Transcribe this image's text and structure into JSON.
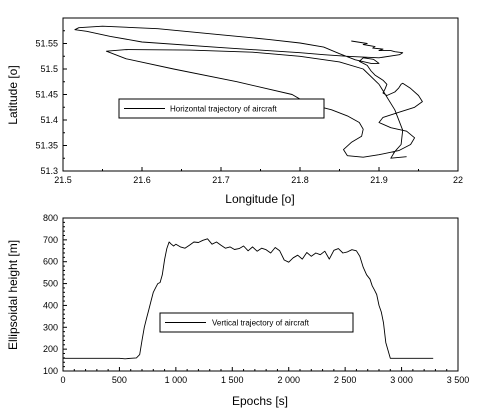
{
  "chart_data": [
    {
      "type": "line",
      "xlabel": "Longitude [o]",
      "ylabel": "Latitude [o]",
      "xlim": [
        21.5,
        22.0
      ],
      "ylim": [
        51.3,
        51.6
      ],
      "xticks": [
        "21.5",
        "21.6",
        "21.7",
        "21.8",
        "21.9",
        "22"
      ],
      "yticks": [
        "51.3",
        "51.35",
        "51.4",
        "51.45",
        "51.5",
        "51.55"
      ],
      "grid": false,
      "legend_position": "center-left",
      "series": [
        {
          "name": "Horizontal trajectory of aircraft",
          "x": [
            21.865,
            21.885,
            21.88,
            21.895,
            21.892,
            21.905,
            21.9,
            21.915,
            21.92,
            21.93,
            21.926,
            21.9,
            21.86,
            21.83,
            21.8,
            21.7,
            21.6,
            21.56,
            21.53,
            21.515,
            21.52,
            21.55,
            21.62,
            21.7,
            21.76,
            21.8,
            21.83,
            21.85,
            21.87,
            21.89,
            21.9,
            21.893,
            21.88,
            21.875,
            21.885,
            21.89,
            21.895,
            21.905,
            21.91,
            21.908,
            21.905,
            21.91,
            21.92,
            21.925,
            21.928,
            21.93,
            21.94,
            21.95,
            21.955,
            21.945,
            21.925,
            21.905,
            21.9,
            21.915,
            21.935,
            21.945,
            21.94,
            21.925,
            21.9,
            21.88,
            21.86,
            21.855,
            21.865,
            21.878,
            21.88,
            21.875,
            21.86,
            21.84,
            21.81,
            21.79,
            21.72,
            21.64,
            21.58,
            21.555,
            21.58,
            21.66,
            21.74,
            21.8,
            21.85,
            21.88,
            21.9,
            21.92,
            21.93,
            21.928,
            21.92,
            21.915,
            21.935
          ],
          "y": [
            51.555,
            51.55,
            51.548,
            51.544,
            51.541,
            51.539,
            51.536,
            51.536,
            51.534,
            51.532,
            51.528,
            51.522,
            51.525,
            51.528,
            51.532,
            51.542,
            51.553,
            51.564,
            51.574,
            51.577,
            51.581,
            51.584,
            51.579,
            51.567,
            51.558,
            51.551,
            51.543,
            51.53,
            51.518,
            51.511,
            51.511,
            51.519,
            51.522,
            51.515,
            51.507,
            51.496,
            51.488,
            51.478,
            51.47,
            51.462,
            51.453,
            51.448,
            51.455,
            51.463,
            51.47,
            51.472,
            51.462,
            51.448,
            51.436,
            51.425,
            51.415,
            51.405,
            51.395,
            51.385,
            51.378,
            51.365,
            51.352,
            51.34,
            51.332,
            51.327,
            51.33,
            51.342,
            51.356,
            51.368,
            51.382,
            51.395,
            51.408,
            51.42,
            51.432,
            51.45,
            51.475,
            51.5,
            51.52,
            51.535,
            51.538,
            51.537,
            51.533,
            51.525,
            51.514,
            51.5,
            51.47,
            51.42,
            51.38,
            51.352,
            51.338,
            51.325,
            51.328
          ]
        }
      ]
    },
    {
      "type": "line",
      "xlabel": "Epochs [s]",
      "ylabel": "Ellipsoidal height [m]",
      "xlim": [
        0,
        3500
      ],
      "ylim": [
        100,
        800
      ],
      "xticks": [
        "0",
        "500",
        "1 000",
        "1 500",
        "2 000",
        "2 500",
        "3 000",
        "3 500"
      ],
      "yticks": [
        "100",
        "200",
        "300",
        "400",
        "500",
        "600",
        "700",
        "800"
      ],
      "grid": false,
      "legend_position": "center-left",
      "series": [
        {
          "name": "Vertical trajectory of aircraft",
          "x": [
            0,
            100,
            200,
            300,
            400,
            500,
            550,
            600,
            650,
            680,
            700,
            720,
            740,
            760,
            780,
            800,
            820,
            840,
            860,
            880,
            900,
            920,
            940,
            960,
            980,
            1000,
            1040,
            1080,
            1120,
            1160,
            1200,
            1240,
            1280,
            1320,
            1360,
            1400,
            1440,
            1480,
            1520,
            1560,
            1600,
            1640,
            1680,
            1720,
            1760,
            1800,
            1840,
            1880,
            1920,
            1960,
            2000,
            2040,
            2080,
            2120,
            2160,
            2200,
            2240,
            2280,
            2320,
            2360,
            2400,
            2440,
            2480,
            2520,
            2560,
            2600,
            2630,
            2660,
            2690,
            2720,
            2740,
            2760,
            2780,
            2800,
            2820,
            2840,
            2860,
            2900,
            3000,
            3100,
            3200,
            3280
          ],
          "y": [
            158,
            158,
            158,
            158,
            158,
            158,
            156,
            158,
            160,
            175,
            240,
            300,
            340,
            380,
            420,
            460,
            480,
            500,
            505,
            540,
            610,
            660,
            690,
            680,
            672,
            680,
            668,
            662,
            675,
            690,
            688,
            698,
            705,
            680,
            690,
            675,
            662,
            668,
            656,
            660,
            672,
            650,
            668,
            648,
            662,
            655,
            640,
            665,
            650,
            608,
            598,
            618,
            630,
            612,
            642,
            625,
            640,
            632,
            648,
            612,
            652,
            660,
            640,
            645,
            655,
            650,
            625,
            575,
            540,
            520,
            490,
            470,
            450,
            400,
            370,
            320,
            230,
            158,
            158,
            158,
            158,
            158
          ]
        }
      ]
    }
  ]
}
